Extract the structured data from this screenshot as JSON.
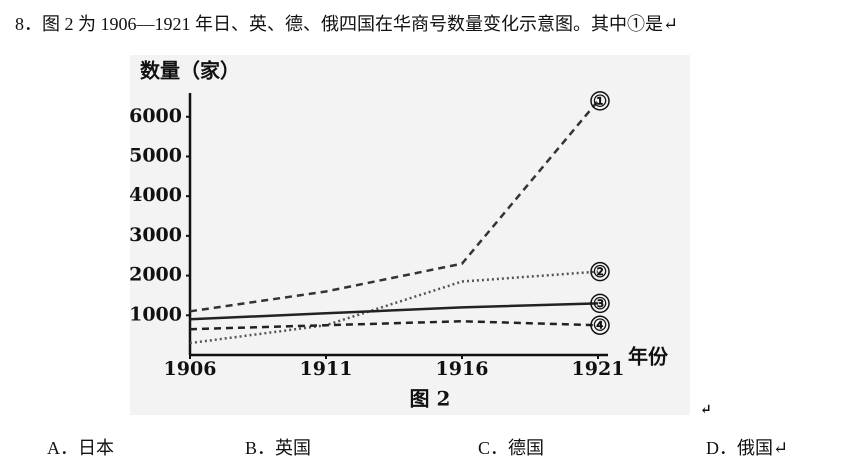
{
  "question": {
    "text": "8．图 2 为 1906—1921 年日、英、德、俄四国在华商号数量变化示意图。其中①是↵",
    "options": [
      "A．日本",
      "B．英国",
      "C．德国",
      "D．俄国↵"
    ]
  },
  "chart_data": {
    "type": "line",
    "ylabel": "数量（家）",
    "xlabel": "年份",
    "caption": "图 2",
    "caption_mark": "↵",
    "x": [
      1906,
      1911,
      1916,
      1921
    ],
    "xlim": [
      1906,
      1921
    ],
    "xticks": [
      1906,
      1911,
      1916,
      1921
    ],
    "ylim": [
      0,
      6800
    ],
    "yticks": [
      1000,
      2000,
      3000,
      4000,
      5000,
      6000
    ],
    "series": [
      {
        "name": "①",
        "color": "#333333",
        "style": "dashed",
        "values": [
          1100,
          1600,
          2300,
          6400
        ]
      },
      {
        "name": "②",
        "color": "#555555",
        "style": "dotted",
        "values": [
          300,
          750,
          1850,
          2100
        ]
      },
      {
        "name": "③",
        "color": "#222222",
        "style": "solid",
        "values": [
          900,
          1050,
          1200,
          1300
        ]
      },
      {
        "name": "④",
        "color": "#222222",
        "style": "dashed",
        "values": [
          650,
          750,
          850,
          750
        ]
      }
    ]
  }
}
